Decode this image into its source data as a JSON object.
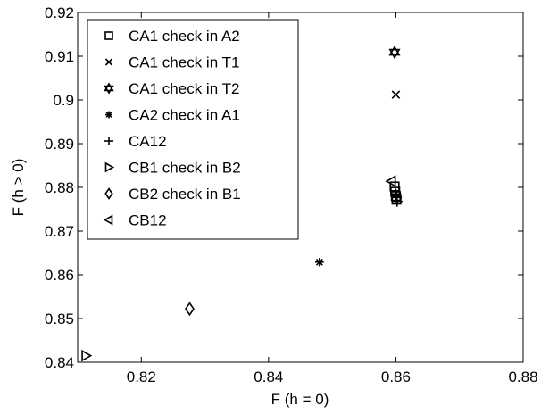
{
  "chart_data": {
    "type": "scatter",
    "xlabel": "F (h = 0)",
    "ylabel": "F (h > 0)",
    "xlim": [
      0.81,
      0.88
    ],
    "ylim": [
      0.84,
      0.92
    ],
    "xticks": [
      0.82,
      0.84,
      0.86,
      0.88
    ],
    "yticks": [
      0.84,
      0.85,
      0.86,
      0.87,
      0.88,
      0.89,
      0.9,
      0.91,
      0.92
    ],
    "xtick_labels": [
      "0.82",
      "0.84",
      "0.86",
      "0.88"
    ],
    "ytick_labels": [
      "0.84",
      "0.85",
      "0.86",
      "0.87",
      "0.88",
      "0.89",
      "0.9",
      "0.91",
      "0.92"
    ],
    "grid": false,
    "legend_position": "top-left",
    "series": [
      {
        "name": "CA1 check in A2",
        "marker": "square",
        "points": [
          [
            0.8598,
            0.8802
          ],
          [
            0.8599,
            0.879
          ],
          [
            0.86,
            0.878
          ],
          [
            0.8601,
            0.8772
          ]
        ]
      },
      {
        "name": "CA1 check in T1",
        "marker": "x",
        "points": [
          [
            0.86,
            0.9012
          ]
        ]
      },
      {
        "name": "CA1 check in T2",
        "marker": "hexagram",
        "points": [
          [
            0.8598,
            0.9109
          ]
        ]
      },
      {
        "name": "CA2 check in A1",
        "marker": "asterisk",
        "points": [
          [
            0.848,
            0.8629
          ]
        ]
      },
      {
        "name": "CA12",
        "marker": "plus",
        "points": [
          [
            0.8601,
            0.8777
          ],
          [
            0.8602,
            0.8768
          ],
          [
            0.86,
            0.8785
          ]
        ]
      },
      {
        "name": "CB1 check in B2",
        "marker": "triangle-right",
        "points": [
          [
            0.8113,
            0.8415
          ]
        ]
      },
      {
        "name": "CB2 check in B1",
        "marker": "diamond",
        "points": [
          [
            0.8276,
            0.8522
          ]
        ]
      },
      {
        "name": "CB12",
        "marker": "triangle-left",
        "points": [
          [
            0.8593,
            0.8814
          ]
        ]
      }
    ]
  }
}
